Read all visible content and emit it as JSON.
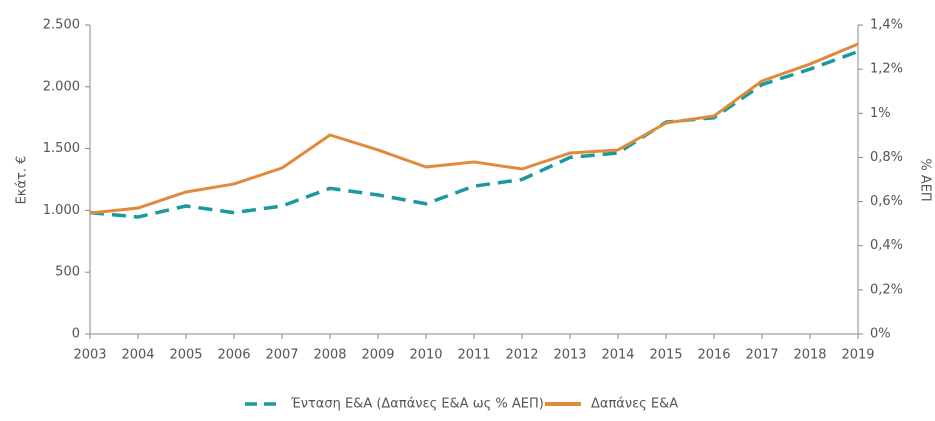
{
  "chart_data": {
    "type": "line",
    "x": [
      2003,
      2004,
      2005,
      2006,
      2007,
      2008,
      2009,
      2010,
      2011,
      2012,
      2013,
      2014,
      2015,
      2016,
      2017,
      2018,
      2019
    ],
    "xlim": [
      2003,
      2019
    ],
    "xticks": [
      2003,
      2004,
      2005,
      2006,
      2007,
      2008,
      2009,
      2010,
      2011,
      2012,
      2013,
      2014,
      2015,
      2016,
      2017,
      2018,
      2019
    ],
    "ylabel": "Εκάτ. €",
    "y2label": "% ΑΕΠ",
    "ylim": [
      0,
      2500
    ],
    "yticks": [
      0,
      500,
      {
        "value": 1000,
        "label": "1.000"
      },
      {
        "value": 1500,
        "label": "1.500"
      },
      {
        "value": 2000,
        "label": "2.000"
      },
      {
        "value": 2500,
        "label": "2.500"
      }
    ],
    "y2lim": [
      0,
      1.4
    ],
    "y2ticks": [
      {
        "value": 0,
        "label": "0%"
      },
      {
        "value": 0.2,
        "label": "0,2%"
      },
      {
        "value": 0.4,
        "label": "0,4%"
      },
      {
        "value": 0.6,
        "label": "0,6%"
      },
      {
        "value": 0.8,
        "label": "0,8%"
      },
      {
        "value": 1,
        "label": "1%"
      },
      {
        "value": 1.2,
        "label": "1,2%"
      },
      {
        "value": 1.4,
        "label": "1,4%"
      }
    ],
    "series": [
      {
        "name": "Ένταση Ε&Α (Δαπάνες Ε&Α ως % ΑΕΠ)",
        "color": "#1a9a9e",
        "dashed": true,
        "axis": "y2",
        "values": [
          0.55,
          0.53,
          0.58,
          0.55,
          0.58,
          0.66,
          0.63,
          0.59,
          0.67,
          0.7,
          0.8,
          0.82,
          0.96,
          0.98,
          1.13,
          1.2,
          1.28
        ]
      },
      {
        "name": "Δαπάνες Ε&Α",
        "color": "#e08a3c",
        "dashed": false,
        "axis": "y",
        "values": [
          979,
          1019,
          1149,
          1214,
          1343,
          1610,
          1489,
          1351,
          1392,
          1335,
          1464,
          1489,
          1707,
          1764,
          2047,
          2184,
          2346
        ]
      }
    ]
  }
}
